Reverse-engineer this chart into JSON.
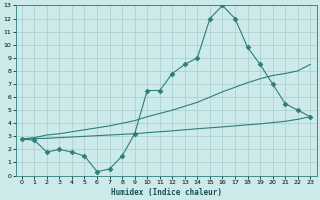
{
  "title": "",
  "xlabel": "Humidex (Indice chaleur)",
  "bg_color": "#cceaea",
  "line_color": "#2e7d7d",
  "grid_color": "#aacccc",
  "x_values": [
    0,
    1,
    2,
    3,
    4,
    5,
    6,
    7,
    8,
    9,
    10,
    11,
    12,
    13,
    14,
    15,
    16,
    17,
    18,
    19,
    20,
    21,
    22,
    23
  ],
  "line1": [
    2.8,
    2.7,
    1.8,
    2.0,
    1.8,
    1.5,
    0.3,
    0.5,
    1.5,
    3.2,
    6.5,
    6.5,
    7.8,
    8.5,
    9.0,
    12.0,
    13.0,
    12.0,
    9.8,
    8.5,
    7.0,
    5.5,
    5.0,
    4.5
  ],
  "line2": [
    2.8,
    2.9,
    3.1,
    3.2,
    3.35,
    3.5,
    3.65,
    3.8,
    4.0,
    4.2,
    4.5,
    4.75,
    5.0,
    5.3,
    5.6,
    6.0,
    6.4,
    6.75,
    7.1,
    7.4,
    7.65,
    7.8,
    8.0,
    8.5
  ],
  "line3": [
    2.8,
    2.82,
    2.85,
    2.9,
    2.95,
    3.0,
    3.05,
    3.1,
    3.15,
    3.2,
    3.28,
    3.35,
    3.42,
    3.5,
    3.58,
    3.65,
    3.72,
    3.8,
    3.88,
    3.95,
    4.05,
    4.15,
    4.3,
    4.5
  ],
  "ylim": [
    0,
    13
  ],
  "xlim": [
    -0.5,
    23.5
  ],
  "yticks": [
    0,
    1,
    2,
    3,
    4,
    5,
    6,
    7,
    8,
    9,
    10,
    11,
    12,
    13
  ],
  "xticks": [
    0,
    1,
    2,
    3,
    4,
    5,
    6,
    7,
    8,
    9,
    10,
    11,
    12,
    13,
    14,
    15,
    16,
    17,
    18,
    19,
    20,
    21,
    22,
    23
  ]
}
